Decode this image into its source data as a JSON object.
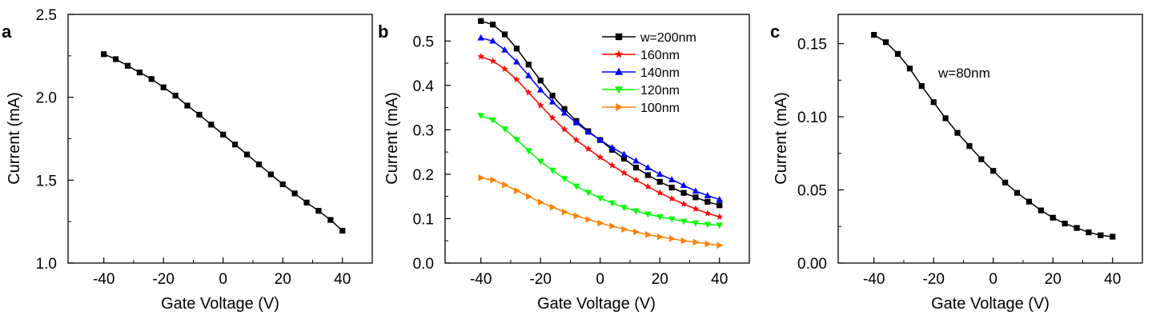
{
  "chart_data": [
    {
      "type": "line",
      "panel": "a",
      "xlabel": "Gate Voltage (V)",
      "ylabel": "Current (mA)",
      "xlim": [
        -52,
        50
      ],
      "ylim": [
        1.0,
        2.5
      ],
      "xticks": [
        -40,
        -20,
        0,
        20,
        40
      ],
      "yticks": [
        1.0,
        1.5,
        2.0,
        2.5
      ],
      "xtick_labels": [
        "-40",
        "-20",
        "0",
        "20",
        "40"
      ],
      "ytick_labels": [
        "1.0",
        "1.5",
        "2.0",
        "2.5"
      ],
      "annotations": [],
      "series": [
        {
          "name": "",
          "marker": "square",
          "color": "#000000",
          "x": [
            -40,
            -36,
            -32,
            -28,
            -24,
            -20,
            -16,
            -12,
            -8,
            -4,
            0,
            4,
            8,
            12,
            16,
            20,
            24,
            28,
            32,
            36,
            40
          ],
          "y": [
            2.26,
            2.23,
            2.19,
            2.15,
            2.11,
            2.06,
            2.01,
            1.95,
            1.895,
            1.835,
            1.775,
            1.715,
            1.655,
            1.595,
            1.535,
            1.475,
            1.42,
            1.365,
            1.315,
            1.26,
            1.195
          ]
        }
      ]
    },
    {
      "type": "line",
      "panel": "b",
      "xlabel": "Gate Voltage (V)",
      "ylabel": "Current (mA)",
      "xlim": [
        -52,
        50
      ],
      "ylim": [
        0.0,
        0.56
      ],
      "xticks": [
        -40,
        -20,
        0,
        20,
        40
      ],
      "yticks": [
        0.0,
        0.1,
        0.2,
        0.3,
        0.4,
        0.5
      ],
      "xtick_labels": [
        "-40",
        "-20",
        "0",
        "20",
        "40"
      ],
      "ytick_labels": [
        "0.0",
        "0.1",
        "0.2",
        "0.3",
        "0.4",
        "0.5"
      ],
      "legend_position": "top-right",
      "annotations": [],
      "series": [
        {
          "name": "w=200nm",
          "marker": "square",
          "color": "#000000",
          "x": [
            -40,
            -36,
            -32,
            -28,
            -24,
            -20,
            -16,
            -12,
            -8,
            -4,
            0,
            4,
            8,
            12,
            16,
            20,
            24,
            28,
            32,
            36,
            40
          ],
          "y": [
            0.545,
            0.537,
            0.515,
            0.483,
            0.447,
            0.411,
            0.377,
            0.347,
            0.32,
            0.297,
            0.277,
            0.255,
            0.235,
            0.215,
            0.198,
            0.183,
            0.17,
            0.158,
            0.148,
            0.138,
            0.13
          ]
        },
        {
          "name": "160nm",
          "marker": "star",
          "color": "#ff0000",
          "x": [
            -40,
            -36,
            -32,
            -28,
            -24,
            -20,
            -16,
            -12,
            -8,
            -4,
            0,
            4,
            8,
            12,
            16,
            20,
            24,
            28,
            32,
            36,
            40
          ],
          "y": [
            0.465,
            0.455,
            0.437,
            0.413,
            0.384,
            0.355,
            0.327,
            0.301,
            0.277,
            0.257,
            0.238,
            0.22,
            0.203,
            0.187,
            0.172,
            0.158,
            0.145,
            0.133,
            0.122,
            0.112,
            0.104
          ]
        },
        {
          "name": "140nm",
          "marker": "triangle-up",
          "color": "#0000ff",
          "x": [
            -40,
            -36,
            -32,
            -28,
            -24,
            -20,
            -16,
            -12,
            -8,
            -4,
            0,
            4,
            8,
            12,
            16,
            20,
            24,
            28,
            32,
            36,
            40
          ],
          "y": [
            0.507,
            0.5,
            0.48,
            0.453,
            0.422,
            0.39,
            0.363,
            0.338,
            0.316,
            0.295,
            0.277,
            0.26,
            0.245,
            0.23,
            0.215,
            0.2,
            0.188,
            0.175,
            0.162,
            0.152,
            0.143
          ]
        },
        {
          "name": "120nm",
          "marker": "triangle-down",
          "color": "#00ff00",
          "x": [
            -40,
            -36,
            -32,
            -28,
            -24,
            -20,
            -16,
            -12,
            -8,
            -4,
            0,
            4,
            8,
            12,
            16,
            20,
            24,
            28,
            32,
            36,
            40
          ],
          "y": [
            0.332,
            0.322,
            0.302,
            0.278,
            0.253,
            0.229,
            0.209,
            0.19,
            0.173,
            0.159,
            0.146,
            0.135,
            0.125,
            0.117,
            0.11,
            0.104,
            0.099,
            0.094,
            0.09,
            0.087,
            0.085
          ]
        },
        {
          "name": "100nm",
          "marker": "triangle-right",
          "color": "#ff8000",
          "x": [
            -40,
            -36,
            -32,
            -28,
            -24,
            -20,
            -16,
            -12,
            -8,
            -4,
            0,
            4,
            8,
            12,
            16,
            20,
            24,
            28,
            32,
            36,
            40
          ],
          "y": [
            0.192,
            0.187,
            0.176,
            0.163,
            0.15,
            0.137,
            0.126,
            0.115,
            0.106,
            0.098,
            0.09,
            0.083,
            0.076,
            0.07,
            0.064,
            0.059,
            0.055,
            0.05,
            0.047,
            0.043,
            0.04
          ]
        }
      ]
    },
    {
      "type": "line",
      "panel": "c",
      "xlabel": "Gate Voltage (V)",
      "ylabel": "Current (mA)",
      "xlim": [
        -52,
        50
      ],
      "ylim": [
        0.0,
        0.17
      ],
      "xticks": [
        -40,
        -20,
        0,
        20,
        40
      ],
      "yticks": [
        0.0,
        0.05,
        0.1,
        0.15
      ],
      "xtick_labels": [
        "-40",
        "-20",
        "0",
        "20",
        "40"
      ],
      "ytick_labels": [
        "0.00",
        "0.05",
        "0.10",
        "0.15"
      ],
      "annotations": [
        "w=80nm"
      ],
      "series": [
        {
          "name": "w=80nm",
          "marker": "square",
          "color": "#000000",
          "x": [
            -40,
            -36,
            -32,
            -28,
            -24,
            -20,
            -16,
            -12,
            -8,
            -4,
            0,
            4,
            8,
            12,
            16,
            20,
            24,
            28,
            32,
            36,
            40
          ],
          "y": [
            0.156,
            0.151,
            0.143,
            0.133,
            0.121,
            0.11,
            0.099,
            0.089,
            0.08,
            0.071,
            0.063,
            0.055,
            0.048,
            0.042,
            0.036,
            0.031,
            0.027,
            0.024,
            0.021,
            0.019,
            0.018
          ]
        }
      ]
    }
  ]
}
